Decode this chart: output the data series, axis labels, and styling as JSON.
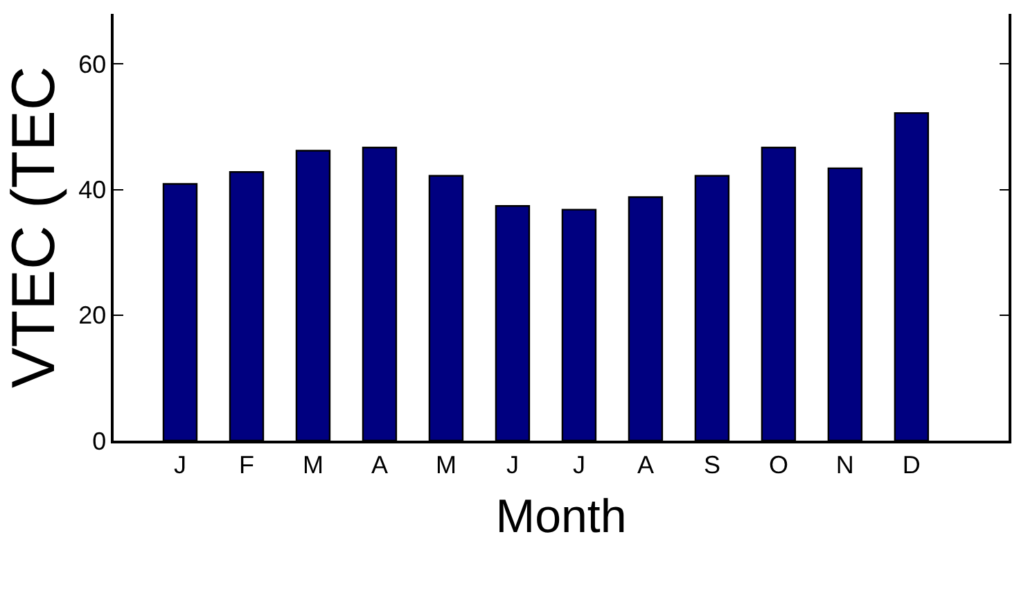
{
  "chart_data": {
    "type": "bar",
    "xlabel": "Month",
    "ylabel": "VTEC (TEC",
    "categories": [
      "J",
      "F",
      "M",
      "A",
      "M",
      "J",
      "J",
      "A",
      "S",
      "O",
      "N",
      "D"
    ],
    "values": [
      40.9,
      42.8,
      46.2,
      46.7,
      42.2,
      37.4,
      36.8,
      38.8,
      42.2,
      46.7,
      43.4,
      52.2
    ],
    "color": "#000080",
    "ylim": [
      0,
      68
    ],
    "yticks": [
      0,
      20,
      40,
      60
    ]
  }
}
